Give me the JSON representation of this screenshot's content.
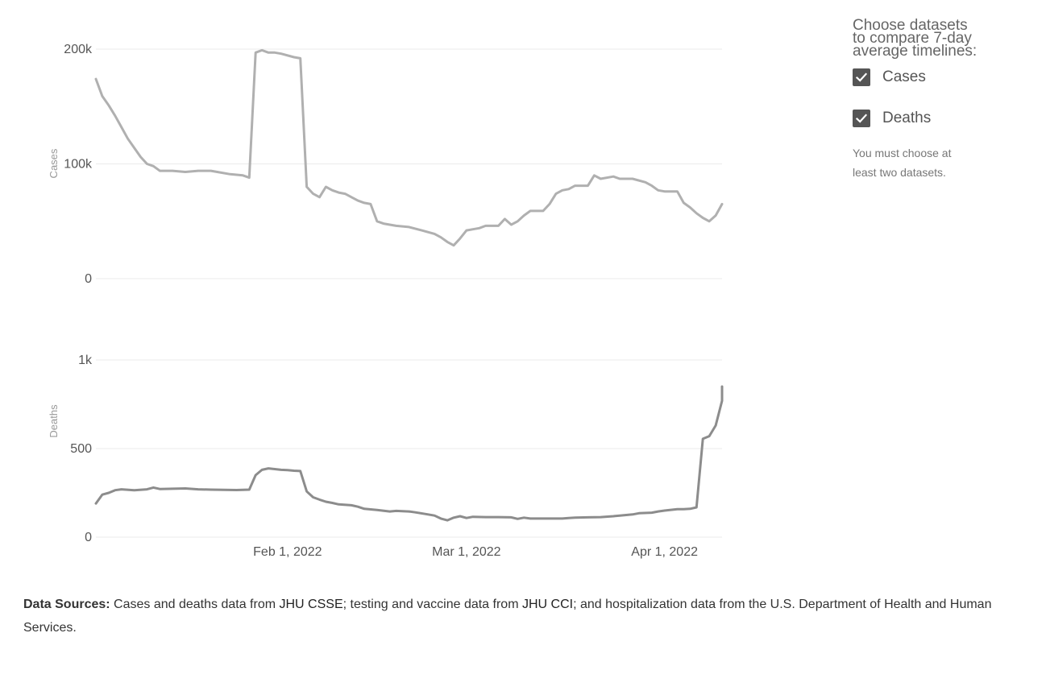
{
  "panel": {
    "prompt_lines": [
      "Choose datasets",
      "to compare 7-day",
      "average timelines:"
    ],
    "options": [
      {
        "label": "Cases",
        "checked": true
      },
      {
        "label": "Deaths",
        "checked": true
      }
    ],
    "note": "You must choose at least two datasets."
  },
  "footer": {
    "label": "Data Sources:",
    "t1": " Cases and deaths data from ",
    "link1": "JHU CSSE",
    "t2": "; testing and vaccine data from ",
    "link2": "JHU CCI",
    "t3": "; and hospitalization data from the U.S. Department of Health and Human Services",
    "t4": "."
  },
  "icons": {
    "checkbox": "checkmark-icon"
  },
  "colors": {
    "cases_line": "#b0b0b0",
    "deaths_line": "#8c8c8c",
    "checkbox": "#555555"
  },
  "chart_data": {
    "type": "line",
    "x_range": [
      "2022-01-02",
      "2022-04-10"
    ],
    "x_ticks": [
      {
        "date": "2022-02-01",
        "label": "Feb 1, 2022"
      },
      {
        "date": "2022-03-01",
        "label": "Mar 1, 2022"
      },
      {
        "date": "2022-04-01",
        "label": "Apr 1, 2022"
      }
    ],
    "grid": true,
    "panels": [
      {
        "name": "Cases",
        "ylabel": "Cases",
        "ylim": [
          0,
          200000
        ],
        "y_ticks": [
          {
            "value": 0,
            "label": "0"
          },
          {
            "value": 100000,
            "label": "100k"
          },
          {
            "value": 200000,
            "label": "200k"
          }
        ],
        "color": "#b0b0b0",
        "points": [
          [
            "2022-01-02",
            174000
          ],
          [
            "2022-01-03",
            159000
          ],
          [
            "2022-01-04",
            151000
          ],
          [
            "2022-01-05",
            142000
          ],
          [
            "2022-01-06",
            132000
          ],
          [
            "2022-01-07",
            122000
          ],
          [
            "2022-01-08",
            114000
          ],
          [
            "2022-01-09",
            106000
          ],
          [
            "2022-01-10",
            100000
          ],
          [
            "2022-01-11",
            98000
          ],
          [
            "2022-01-12",
            94000
          ],
          [
            "2022-01-14",
            94000
          ],
          [
            "2022-01-16",
            93000
          ],
          [
            "2022-01-18",
            94000
          ],
          [
            "2022-01-19",
            94000
          ],
          [
            "2022-01-20",
            94000
          ],
          [
            "2022-01-21",
            93000
          ],
          [
            "2022-01-23",
            91000
          ],
          [
            "2022-01-25",
            90000
          ],
          [
            "2022-01-26",
            88000
          ],
          [
            "2022-01-27",
            197000
          ],
          [
            "2022-01-28",
            199000
          ],
          [
            "2022-01-29",
            197000
          ],
          [
            "2022-01-30",
            197000
          ],
          [
            "2022-01-31",
            196000
          ],
          [
            "2022-02-02",
            193000
          ],
          [
            "2022-02-03",
            192000
          ],
          [
            "2022-02-04",
            80000
          ],
          [
            "2022-02-05",
            74000
          ],
          [
            "2022-02-06",
            71000
          ],
          [
            "2022-02-07",
            80000
          ],
          [
            "2022-02-08",
            77000
          ],
          [
            "2022-02-09",
            75000
          ],
          [
            "2022-02-10",
            74000
          ],
          [
            "2022-02-11",
            71000
          ],
          [
            "2022-02-12",
            68000
          ],
          [
            "2022-02-13",
            66000
          ],
          [
            "2022-02-14",
            65000
          ],
          [
            "2022-02-15",
            50000
          ],
          [
            "2022-02-16",
            48000
          ],
          [
            "2022-02-17",
            47000
          ],
          [
            "2022-02-18",
            46000
          ],
          [
            "2022-02-20",
            45000
          ],
          [
            "2022-02-22",
            42000
          ],
          [
            "2022-02-24",
            39000
          ],
          [
            "2022-02-25",
            36000
          ],
          [
            "2022-02-26",
            32000
          ],
          [
            "2022-02-27",
            29000
          ],
          [
            "2022-02-28",
            35000
          ],
          [
            "2022-03-01",
            42000
          ],
          [
            "2022-03-02",
            43000
          ],
          [
            "2022-03-03",
            44000
          ],
          [
            "2022-03-04",
            46000
          ],
          [
            "2022-03-06",
            46000
          ],
          [
            "2022-03-07",
            52000
          ],
          [
            "2022-03-08",
            47000
          ],
          [
            "2022-03-09",
            50000
          ],
          [
            "2022-03-10",
            55000
          ],
          [
            "2022-03-11",
            59000
          ],
          [
            "2022-03-13",
            59000
          ],
          [
            "2022-03-14",
            65000
          ],
          [
            "2022-03-15",
            74000
          ],
          [
            "2022-03-16",
            77000
          ],
          [
            "2022-03-17",
            78000
          ],
          [
            "2022-03-18",
            81000
          ],
          [
            "2022-03-20",
            81000
          ],
          [
            "2022-03-21",
            90000
          ],
          [
            "2022-03-22",
            87000
          ],
          [
            "2022-03-24",
            89000
          ],
          [
            "2022-03-25",
            87000
          ],
          [
            "2022-03-27",
            87000
          ],
          [
            "2022-03-29",
            84000
          ],
          [
            "2022-03-30",
            81000
          ],
          [
            "2022-03-31",
            77000
          ],
          [
            "2022-04-01",
            76000
          ],
          [
            "2022-04-03",
            76000
          ],
          [
            "2022-04-04",
            66000
          ],
          [
            "2022-04-05",
            62000
          ],
          [
            "2022-04-06",
            57000
          ],
          [
            "2022-04-07",
            53000
          ],
          [
            "2022-04-08",
            50000
          ],
          [
            "2022-04-09",
            55000
          ],
          [
            "2022-04-10",
            65000
          ]
        ]
      },
      {
        "name": "Deaths",
        "ylabel": "Deaths",
        "ylim": [
          0,
          1000
        ],
        "y_ticks": [
          {
            "value": 0,
            "label": "0"
          },
          {
            "value": 500,
            "label": "500"
          },
          {
            "value": 1000,
            "label": "1k"
          }
        ],
        "color": "#8c8c8c",
        "points": [
          [
            "2022-01-02",
            190
          ],
          [
            "2022-01-03",
            240
          ],
          [
            "2022-01-04",
            250
          ],
          [
            "2022-01-05",
            265
          ],
          [
            "2022-01-06",
            270
          ],
          [
            "2022-01-08",
            265
          ],
          [
            "2022-01-10",
            270
          ],
          [
            "2022-01-11",
            280
          ],
          [
            "2022-01-12",
            272
          ],
          [
            "2022-01-14",
            273
          ],
          [
            "2022-01-16",
            275
          ],
          [
            "2022-01-18",
            270
          ],
          [
            "2022-01-20",
            268
          ],
          [
            "2022-01-22",
            267
          ],
          [
            "2022-01-24",
            266
          ],
          [
            "2022-01-26",
            268
          ],
          [
            "2022-01-27",
            350
          ],
          [
            "2022-01-28",
            380
          ],
          [
            "2022-01-29",
            388
          ],
          [
            "2022-01-31",
            380
          ],
          [
            "2022-02-01",
            378
          ],
          [
            "2022-02-02",
            375
          ],
          [
            "2022-02-03",
            373
          ],
          [
            "2022-02-04",
            258
          ],
          [
            "2022-02-05",
            225
          ],
          [
            "2022-02-06",
            212
          ],
          [
            "2022-02-07",
            200
          ],
          [
            "2022-02-08",
            193
          ],
          [
            "2022-02-09",
            185
          ],
          [
            "2022-02-11",
            180
          ],
          [
            "2022-02-12",
            172
          ],
          [
            "2022-02-13",
            160
          ],
          [
            "2022-02-15",
            153
          ],
          [
            "2022-02-17",
            145
          ],
          [
            "2022-02-18",
            148
          ],
          [
            "2022-02-20",
            145
          ],
          [
            "2022-02-21",
            140
          ],
          [
            "2022-02-23",
            128
          ],
          [
            "2022-02-24",
            122
          ],
          [
            "2022-02-25",
            105
          ],
          [
            "2022-02-26",
            95
          ],
          [
            "2022-02-27",
            110
          ],
          [
            "2022-02-28",
            118
          ],
          [
            "2022-03-01",
            108
          ],
          [
            "2022-03-02",
            115
          ],
          [
            "2022-03-04",
            113
          ],
          [
            "2022-03-06",
            113
          ],
          [
            "2022-03-08",
            112
          ],
          [
            "2022-03-09",
            103
          ],
          [
            "2022-03-10",
            110
          ],
          [
            "2022-03-11",
            105
          ],
          [
            "2022-03-13",
            105
          ],
          [
            "2022-03-16",
            105
          ],
          [
            "2022-03-17",
            108
          ],
          [
            "2022-03-18",
            110
          ],
          [
            "2022-03-20",
            112
          ],
          [
            "2022-03-22",
            113
          ],
          [
            "2022-03-24",
            118
          ],
          [
            "2022-03-25",
            122
          ],
          [
            "2022-03-27",
            128
          ],
          [
            "2022-03-28",
            135
          ],
          [
            "2022-03-30",
            138
          ],
          [
            "2022-03-31",
            145
          ],
          [
            "2022-04-01",
            150
          ],
          [
            "2022-04-03",
            158
          ],
          [
            "2022-04-04",
            158
          ],
          [
            "2022-04-05",
            160
          ],
          [
            "2022-04-06",
            168
          ],
          [
            "2022-04-07",
            555
          ],
          [
            "2022-04-08",
            570
          ],
          [
            "2022-04-09",
            630
          ],
          [
            "2022-04-10",
            770
          ],
          [
            "2022-04-11",
            850
          ]
        ]
      }
    ]
  }
}
